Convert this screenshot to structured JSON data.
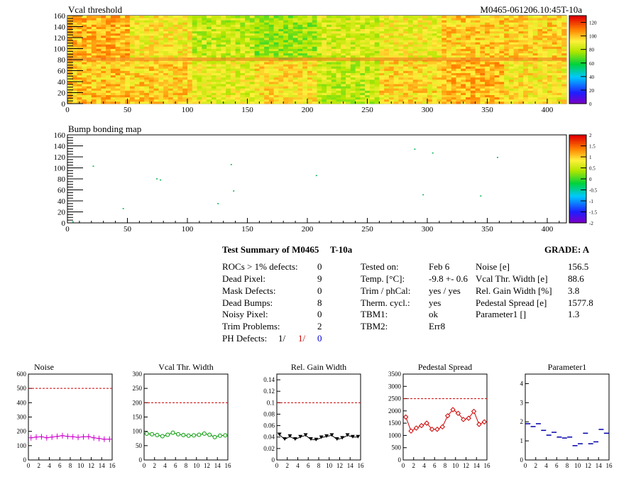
{
  "header": {
    "map1_title": "Vcal threshold",
    "run_label": "M0465-061206.10:45T-10a",
    "map2_title": "Bump bonding map"
  },
  "colors": {
    "red": "#cc0000",
    "blue": "#0000cc",
    "noise": "#cc00cc",
    "vcal": "#009900",
    "gain": "#000000",
    "pedestal": "#cc0000",
    "param": "#0000aa"
  },
  "maps": [
    {
      "type": "heatmap",
      "title": "Vcal threshold",
      "xlim": [
        0,
        416
      ],
      "ylim": [
        0,
        160
      ],
      "x_ticks": [
        "0",
        "50",
        "100",
        "150",
        "200",
        "250",
        "300",
        "350",
        "400"
      ],
      "y_ticks": [
        "0",
        "20",
        "40",
        "60",
        "80",
        "100",
        "120",
        "140",
        "160"
      ],
      "z_ticks": [
        "0",
        "20",
        "40",
        "60",
        "80",
        "100",
        "120"
      ],
      "zlim": [
        0,
        130
      ],
      "roc_levels_top": [
        103,
        92,
        82,
        76,
        85,
        90,
        98,
        97
      ],
      "roc_levels_bottom": [
        100,
        98,
        88,
        95,
        82,
        96,
        102,
        93
      ]
    },
    {
      "type": "scatter",
      "title": "Bump bonding map",
      "xlim": [
        0,
        416
      ],
      "ylim": [
        0,
        160
      ],
      "x_ticks": [
        "0",
        "50",
        "100",
        "150",
        "200",
        "250",
        "300",
        "350",
        "400"
      ],
      "y_ticks": [
        "0",
        "20",
        "40",
        "60",
        "80",
        "100",
        "120",
        "140",
        "160"
      ],
      "z_ticks": [
        "2",
        "1.5",
        "1",
        "0.5",
        "0",
        "-0.5",
        "-1",
        "-1.5",
        "-2"
      ],
      "zlim": [
        -2,
        2
      ],
      "points": [
        [
          4,
          3
        ],
        [
          21,
          104
        ],
        [
          46,
          27
        ],
        [
          74,
          81
        ],
        [
          77,
          79
        ],
        [
          125,
          36
        ],
        [
          136,
          107
        ],
        [
          138,
          59
        ],
        [
          207,
          87
        ],
        [
          289,
          135
        ],
        [
          296,
          52
        ],
        [
          304,
          128
        ],
        [
          344,
          50
        ],
        [
          358,
          120
        ]
      ]
    }
  ],
  "summary": {
    "title": "Test Summary of M0465",
    "temp_label": "T-10a",
    "grade": "GRADE:  A",
    "col1": [
      {
        "label": "ROCs > 1% defects:",
        "value": "0"
      },
      {
        "label": "Dead Pixel:",
        "value": "9"
      },
      {
        "label": "Mask Defects:",
        "value": "0"
      },
      {
        "label": "Dead Bumps:",
        "value": "8"
      },
      {
        "label": "Noisy Pixel:",
        "value": "0"
      },
      {
        "label": "Trim Problems:",
        "value": "2"
      }
    ],
    "ph_defects": {
      "label": "PH Defects:",
      "v1": "1/",
      "v2": "1/",
      "v3": "0"
    },
    "col2": [
      {
        "label": "Tested on:",
        "value": "Feb 6"
      },
      {
        "label": "Temp. [°C]:",
        "value": "-9.8 +- 0.6"
      },
      {
        "label": "Trim / phCal:",
        "value": "yes / yes"
      },
      {
        "label": "Therm. cycl.:",
        "value": "yes"
      },
      {
        "label": "TBM1:",
        "value": "ok"
      },
      {
        "label": "TBM2:",
        "value": "Err8"
      }
    ],
    "col3": [
      {
        "label": "Noise [e]",
        "value": "156.5"
      },
      {
        "label": "Vcal Thr. Width [e]",
        "value": "88.6"
      },
      {
        "label": "Rel. Gain Width [%]",
        "value": "3.8"
      },
      {
        "label": "Pedestal Spread [e]",
        "value": "1577.8"
      },
      {
        "label": "Parameter1 []",
        "value": "1.3"
      }
    ]
  },
  "chart_data": [
    {
      "type": "line",
      "title": "Noise",
      "marker": "plus",
      "color": "#cc00cc",
      "x": [
        0,
        1,
        2,
        3,
        4,
        5,
        6,
        7,
        8,
        9,
        10,
        11,
        12,
        13,
        14,
        15
      ],
      "values": [
        155,
        160,
        162,
        155,
        160,
        165,
        170,
        165,
        162,
        158,
        162,
        163,
        155,
        150,
        145,
        145
      ],
      "ylim": [
        0,
        600
      ],
      "ref": 500,
      "y_ticks": [
        0,
        100,
        200,
        300,
        400,
        500,
        600
      ],
      "x_ticks": [
        0,
        2,
        4,
        6,
        8,
        10,
        12,
        14,
        16
      ]
    },
    {
      "type": "line",
      "title": "Vcal Thr. Width",
      "marker": "circle",
      "color": "#009900",
      "x": [
        0,
        1,
        2,
        3,
        4,
        5,
        6,
        7,
        8,
        9,
        10,
        11,
        12,
        13,
        14,
        15
      ],
      "values": [
        92,
        90,
        87,
        83,
        88,
        95,
        90,
        87,
        85,
        86,
        88,
        92,
        88,
        80,
        85,
        86
      ],
      "ylim": [
        0,
        300
      ],
      "ref": 200,
      "y_ticks": [
        0,
        50,
        100,
        150,
        200,
        250,
        300
      ],
      "x_ticks": [
        0,
        2,
        4,
        6,
        8,
        10,
        12,
        14,
        16
      ]
    },
    {
      "type": "line",
      "title": "Rel. Gain Width",
      "marker": "tri",
      "color": "#000000",
      "x": [
        0,
        1,
        2,
        3,
        4,
        5,
        6,
        7,
        8,
        9,
        10,
        11,
        12,
        13,
        14,
        15
      ],
      "values": [
        0.044,
        0.036,
        0.041,
        0.036,
        0.04,
        0.043,
        0.036,
        0.035,
        0.039,
        0.041,
        0.043,
        0.036,
        0.038,
        0.043,
        0.04,
        0.04
      ],
      "ylim": [
        0,
        0.15
      ],
      "ref": 0.1,
      "y_ticks": [
        0,
        0.02,
        0.04,
        0.06,
        0.08,
        0.1,
        0.12,
        0.14
      ],
      "x_ticks": [
        0,
        2,
        4,
        6,
        8,
        10,
        12,
        14,
        16
      ]
    },
    {
      "type": "line",
      "title": "Pedestal Spread",
      "marker": "diamond",
      "color": "#cc0000",
      "x": [
        0,
        1,
        2,
        3,
        4,
        5,
        6,
        7,
        8,
        9,
        10,
        11,
        12,
        13,
        14,
        15
      ],
      "values": [
        1750,
        1180,
        1300,
        1400,
        1500,
        1250,
        1250,
        1350,
        1800,
        2050,
        1900,
        1650,
        1700,
        1980,
        1450,
        1550
      ],
      "ylim": [
        0,
        3500
      ],
      "ref": 2500,
      "y_ticks": [
        0,
        500,
        1000,
        1500,
        2000,
        2500,
        3000,
        3500
      ],
      "x_ticks": [
        0,
        2,
        4,
        6,
        8,
        10,
        12,
        14,
        16
      ]
    },
    {
      "type": "scatter",
      "title": "Parameter1",
      "marker": "hbar",
      "color": "#0000aa",
      "x": [
        0,
        1,
        2,
        3,
        4,
        5,
        6,
        7,
        8,
        9,
        10,
        11,
        12,
        13,
        14,
        15
      ],
      "values": [
        1.9,
        1.75,
        1.9,
        1.55,
        1.3,
        1.45,
        1.2,
        1.15,
        1.2,
        0.75,
        0.85,
        1.4,
        0.85,
        0.95,
        1.6,
        1.4
      ],
      "ylim": [
        0,
        4.5
      ],
      "y_ticks": [
        0,
        1,
        2,
        3,
        4
      ],
      "x_ticks": [
        0,
        2,
        4,
        6,
        8,
        10,
        12,
        14,
        16
      ]
    }
  ]
}
